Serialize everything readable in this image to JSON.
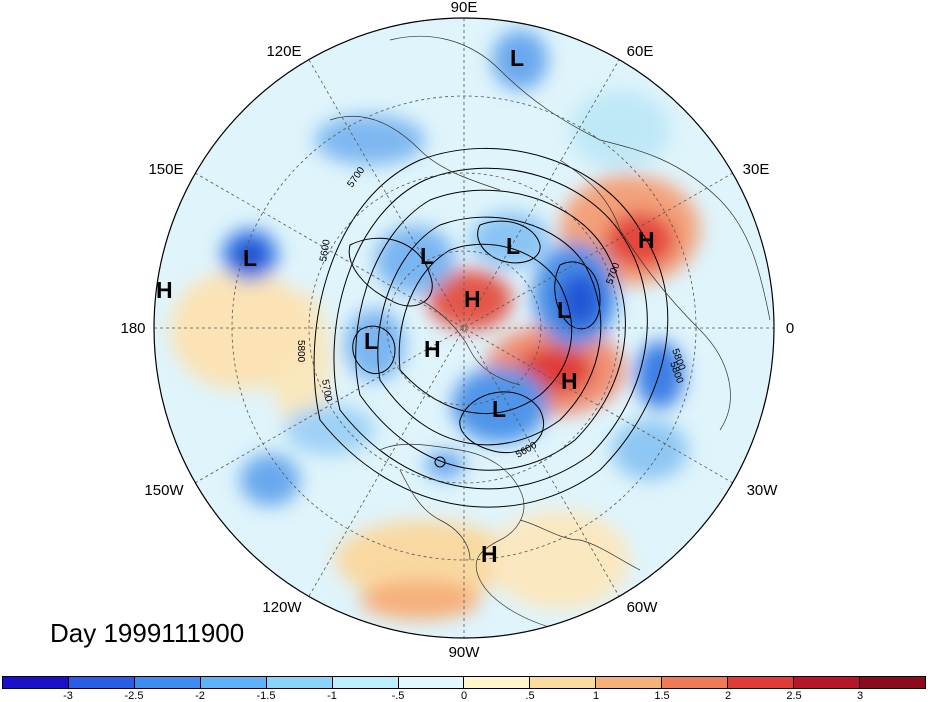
{
  "title": "Day 1999111900",
  "map": {
    "projection": "north-polar-stereographic",
    "longitude_labels": [
      "90E",
      "60E",
      "30E",
      "0",
      "30W",
      "60W",
      "90W",
      "120W",
      "150W",
      "180",
      "150E",
      "120E"
    ],
    "contour_labels": [
      "5700",
      "5600",
      "5800",
      "5700",
      "5800",
      "5700",
      "5600",
      "5800"
    ],
    "pressure_centers": [
      {
        "type": "L",
        "label": "L"
      },
      {
        "type": "L",
        "label": "L"
      },
      {
        "type": "L",
        "label": "L"
      },
      {
        "type": "L",
        "label": "L"
      },
      {
        "type": "L",
        "label": "L"
      },
      {
        "type": "L",
        "label": "L"
      },
      {
        "type": "L",
        "label": "L"
      },
      {
        "type": "H",
        "label": "H"
      },
      {
        "type": "H",
        "label": "H"
      },
      {
        "type": "H",
        "label": "H"
      },
      {
        "type": "H",
        "label": "H"
      },
      {
        "type": "H",
        "label": "H"
      },
      {
        "type": "H",
        "label": "H"
      }
    ]
  },
  "colorbar": {
    "ticks": [
      "-3",
      "-2.5",
      "-2",
      "-1.5",
      "-1",
      "-.5",
      "0",
      ".5",
      "1",
      "1.5",
      "2",
      "2.5",
      "3"
    ],
    "colors": [
      "#1a10c8",
      "#2a5ce6",
      "#3f8cf0",
      "#5fb2f5",
      "#8ad4fa",
      "#bdeefc",
      "#e3f8fd",
      "#fdf6cf",
      "#fbdca0",
      "#f6b07a",
      "#ee7a58",
      "#df3c37",
      "#b8142a",
      "#8c0a1e"
    ]
  },
  "colors": {
    "frame": "#000000",
    "background": "#ffffff"
  }
}
